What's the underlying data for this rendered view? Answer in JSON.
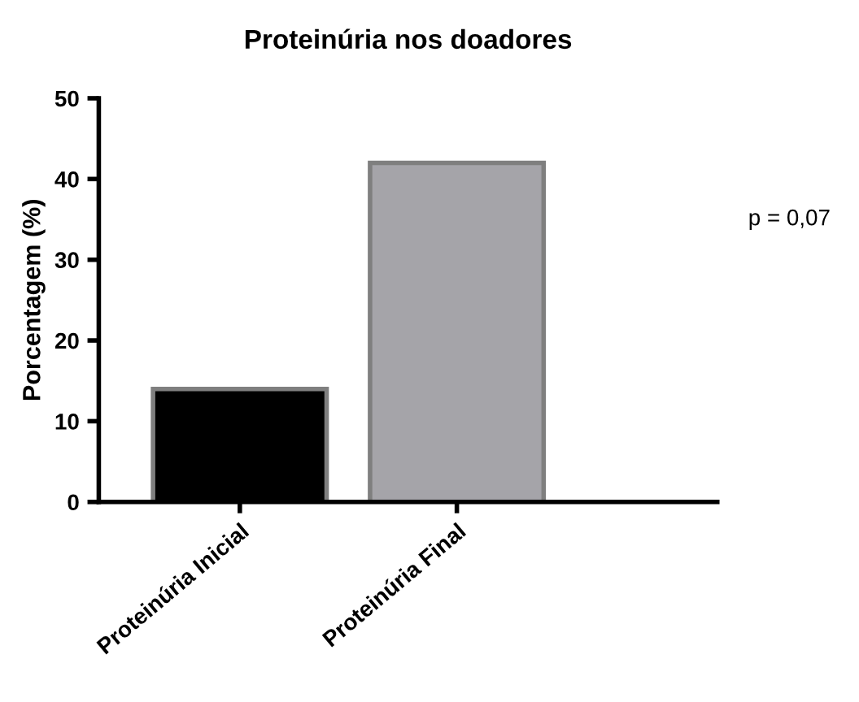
{
  "chart_data": {
    "type": "bar",
    "title": "Proteinúria nos doadores",
    "ylabel": "Porcentagem (%)",
    "categories": [
      "Proteinúria Inicial",
      "Proteinúria Final"
    ],
    "values": [
      14,
      42
    ],
    "colors": [
      "#000000",
      "#a5a4a9"
    ],
    "ylim": [
      0,
      50
    ],
    "yticks": [
      0,
      10,
      20,
      30,
      40,
      50
    ],
    "grid": false,
    "annotations": [
      "p = 0,07"
    ]
  }
}
